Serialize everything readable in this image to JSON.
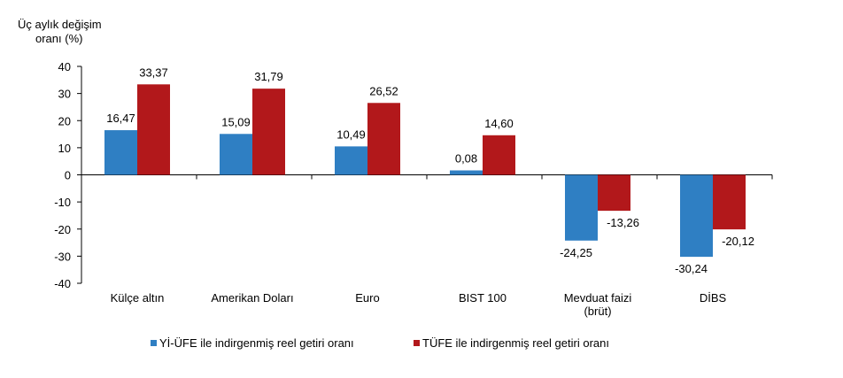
{
  "chart_data": {
    "type": "bar",
    "title": "",
    "ylabel_lines": [
      "Üç aylık değişim",
      "oranı (%)"
    ],
    "xlabel": "",
    "ylim": [
      -40,
      40
    ],
    "yticks": [
      40,
      30,
      20,
      10,
      0,
      -10,
      -20,
      -30,
      -40
    ],
    "categories": [
      [
        "Külçe altın"
      ],
      [
        "Amerikan Doları"
      ],
      [
        "Euro"
      ],
      [
        "BIST 100"
      ],
      [
        "Mevduat faizi",
        "(brüt)"
      ],
      [
        "DİBS"
      ]
    ],
    "series": [
      {
        "name": "Yİ-ÜFE ile indirgenmiş reel getiri oranı",
        "color": "#2f7fc3",
        "values": [
          16.47,
          15.09,
          10.49,
          0.08,
          -24.25,
          -30.24
        ],
        "labels": [
          "16,47",
          "15,09",
          "10,49",
          "0,08",
          "-24,25",
          "-30,24"
        ]
      },
      {
        "name": "TÜFE ile indirgenmiş reel getiri oranı",
        "color": "#b2181b",
        "values": [
          33.37,
          31.79,
          26.52,
          14.6,
          -13.26,
          -20.12
        ],
        "labels": [
          "33,37",
          "31,79",
          "26,52",
          "14,60",
          "-13,26",
          "-20,12"
        ]
      }
    ],
    "legend": "bottom",
    "grid": false
  }
}
